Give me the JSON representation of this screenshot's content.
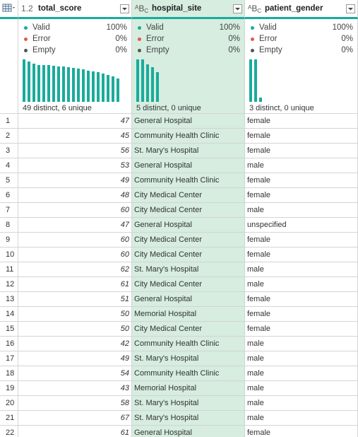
{
  "columns": [
    {
      "type_icon": "decimal-number-icon",
      "type_label": "1.2",
      "name": "total_score",
      "valid": "100%",
      "error": "0%",
      "empty": "0%",
      "distinct_text": "49 distinct, 6 unique",
      "histogram": [
        1.0,
        0.95,
        0.9,
        0.87,
        0.87,
        0.86,
        0.85,
        0.84,
        0.83,
        0.82,
        0.8,
        0.78,
        0.76,
        0.74,
        0.72,
        0.7,
        0.66,
        0.64,
        0.6,
        0.55
      ]
    },
    {
      "type_icon": "text-abc-icon",
      "type_label": "ABC",
      "name": "hospital_site",
      "valid": "100%",
      "error": "0%",
      "empty": "0%",
      "distinct_text": "5 distinct, 0 unique",
      "histogram": [
        1.0,
        1.0,
        0.88,
        0.82,
        0.7
      ]
    },
    {
      "type_icon": "text-abc-icon",
      "type_label": "ABC",
      "name": "patient_gender",
      "valid": "100%",
      "error": "0%",
      "empty": "0%",
      "distinct_text": "3 distinct, 0 unique",
      "histogram": [
        1.0,
        1.0,
        0.1
      ]
    }
  ],
  "labels": {
    "valid": "Valid",
    "error": "Error",
    "empty": "Empty"
  },
  "colors": {
    "valid": "#1aab9b",
    "error": "#e4584a",
    "empty": "#555555",
    "selected_column": "#d6ede0",
    "accent": "#1aab9b"
  },
  "rows": [
    {
      "idx": "1",
      "score": "47",
      "site": "General Hospital",
      "gender": "female"
    },
    {
      "idx": "2",
      "score": "45",
      "site": "Community Health Clinic",
      "gender": "female"
    },
    {
      "idx": "3",
      "score": "56",
      "site": "St. Mary's Hospital",
      "gender": "female"
    },
    {
      "idx": "4",
      "score": "53",
      "site": "General Hospital",
      "gender": "male"
    },
    {
      "idx": "5",
      "score": "49",
      "site": "Community Health Clinic",
      "gender": "female"
    },
    {
      "idx": "6",
      "score": "48",
      "site": "City Medical Center",
      "gender": "female"
    },
    {
      "idx": "7",
      "score": "60",
      "site": "City Medical Center",
      "gender": "male"
    },
    {
      "idx": "8",
      "score": "47",
      "site": "General Hospital",
      "gender": "unspecified"
    },
    {
      "idx": "9",
      "score": "60",
      "site": "City Medical Center",
      "gender": "female"
    },
    {
      "idx": "10",
      "score": "60",
      "site": "City Medical Center",
      "gender": "female"
    },
    {
      "idx": "11",
      "score": "62",
      "site": "St. Mary's Hospital",
      "gender": "male"
    },
    {
      "idx": "12",
      "score": "61",
      "site": "City Medical Center",
      "gender": "male"
    },
    {
      "idx": "13",
      "score": "51",
      "site": "General Hospital",
      "gender": "female"
    },
    {
      "idx": "14",
      "score": "50",
      "site": "Memorial Hospital",
      "gender": "female"
    },
    {
      "idx": "15",
      "score": "50",
      "site": "City Medical Center",
      "gender": "female"
    },
    {
      "idx": "16",
      "score": "42",
      "site": "Community Health Clinic",
      "gender": "male"
    },
    {
      "idx": "17",
      "score": "49",
      "site": "St. Mary's Hospital",
      "gender": "male"
    },
    {
      "idx": "18",
      "score": "54",
      "site": "Community Health Clinic",
      "gender": "male"
    },
    {
      "idx": "19",
      "score": "43",
      "site": "Memorial Hospital",
      "gender": "male"
    },
    {
      "idx": "20",
      "score": "58",
      "site": "St. Mary's Hospital",
      "gender": "male"
    },
    {
      "idx": "21",
      "score": "67",
      "site": "St. Mary's Hospital",
      "gender": "male"
    },
    {
      "idx": "22",
      "score": "61",
      "site": "General Hospital",
      "gender": "female"
    }
  ]
}
